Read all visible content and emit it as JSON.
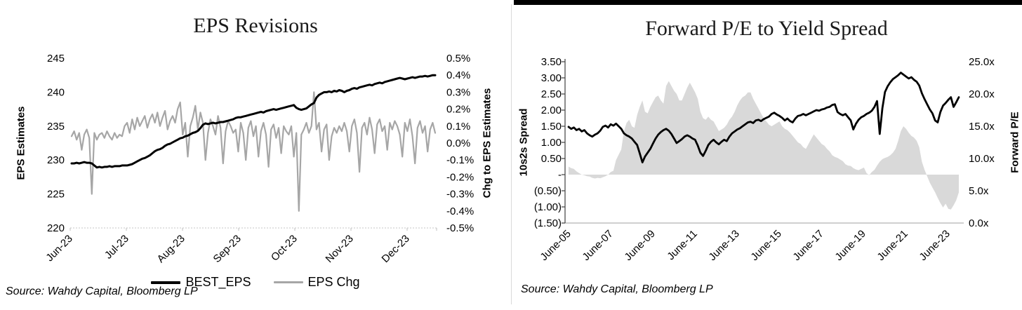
{
  "chart_data": [
    {
      "type": "line",
      "title": "EPS Revisions",
      "source": "Source: Wahdy Capital, Bloomberg LP",
      "left_axis": {
        "title": "EPS Estimates",
        "min": 220,
        "max": 245,
        "tick_labels": [
          "245",
          "240",
          "235",
          "230",
          "225",
          "220"
        ]
      },
      "right_axis": {
        "title": "Chg to EPS Estimates",
        "min": -0.5,
        "max": 0.5,
        "tick_labels": [
          "0.5%",
          "0.4%",
          "0.3%",
          "0.2%",
          "0.1%",
          "0.0%",
          "-0.1%",
          "-0.2%",
          "-0.3%",
          "-0.4%",
          "-0.5%"
        ]
      },
      "x_axis": {
        "tick_labels": [
          "Jun-23",
          "Jul-23",
          "Aug-23",
          "Sep-23",
          "Oct-23",
          "Nov-23",
          "Dec-23"
        ]
      },
      "legend_position": "bottom",
      "grid": false,
      "series": [
        {
          "name": "EPS Chg",
          "axis": "right",
          "type": "line",
          "color": "#a6a6a6",
          "width": 2.2,
          "values": [
            0.04,
            0.07,
            0.02,
            0.06,
            -0.04,
            0.05,
            0.08,
            0.03,
            -0.3,
            0.06,
            0.02,
            0.05,
            0.06,
            0.03,
            0.07,
            0.04,
            0.02,
            0.06,
            0.03,
            0.05,
            0.04,
            0.1,
            0.12,
            0.06,
            0.14,
            0.08,
            0.15,
            0.1,
            0.13,
            0.16,
            0.09,
            0.14,
            0.17,
            0.12,
            0.18,
            0.1,
            0.15,
            0.19,
            0.08,
            0.13,
            0.16,
            0.12,
            0.2,
            0.24,
            0.05,
            0.12,
            -0.08,
            0.1,
            0.15,
            0.22,
            0.08,
            0.18,
            0.12,
            -0.1,
            0.06,
            0.14,
            0.1,
            0.05,
            0.16,
            0.09,
            -0.12,
            0.07,
            0.13,
            0.1,
            0.06,
            0.08,
            -0.05,
            0.12,
            0.06,
            -0.1,
            0.09,
            0.13,
            0.04,
            0.1,
            -0.08,
            0.07,
            0.12,
            0.05,
            -0.14,
            0.08,
            0.11,
            0.03,
            0.09,
            -0.06,
            0.1,
            0.07,
            0.05,
            0.1,
            -0.08,
            0.06,
            -0.4,
            0.05,
            0.08,
            0.12,
            0.06,
            0.1,
            0.3,
            0.08,
            0.12,
            -0.05,
            0.08,
            0.11,
            -0.1,
            0.04,
            0.09,
            0.06,
            0.1,
            0.07,
            0.12,
            0.07,
            -0.05,
            0.1,
            0.14,
            0.06,
            -0.17,
            0.09,
            0.12,
            0.05,
            0.15,
            0.08,
            -0.06,
            0.11,
            0.14,
            0.07,
            0.1,
            -0.04,
            0.12,
            0.08,
            0.13,
            0.1,
            0.05,
            -0.08,
            0.12,
            0.07,
            0.14,
            0.04,
            -0.12,
            0.09,
            0.13,
            0.06,
            0.1,
            -0.05,
            0.08,
            0.12,
            0.06
          ]
        },
        {
          "name": "BEST_EPS",
          "axis": "left",
          "type": "line",
          "color": "#000000",
          "width": 3,
          "values": [
            229.5,
            229.5,
            229.6,
            229.5,
            229.6,
            229.7,
            229.6,
            229.6,
            229.5,
            229.2,
            228.9,
            229.0,
            228.9,
            229.0,
            229.0,
            229.1,
            229.0,
            229.1,
            229.1,
            229.1,
            229.2,
            229.2,
            229.2,
            229.3,
            229.4,
            229.6,
            229.8,
            230.0,
            230.2,
            230.3,
            230.5,
            230.7,
            231.0,
            231.3,
            231.5,
            231.6,
            231.8,
            232.1,
            232.3,
            232.4,
            232.6,
            232.8,
            233.0,
            233.2,
            233.3,
            233.5,
            233.6,
            233.8,
            234.0,
            234.1,
            234.3,
            234.7,
            235.2,
            235.4,
            235.3,
            235.4,
            235.5,
            235.4,
            235.5,
            235.6,
            235.6,
            235.7,
            235.8,
            235.9,
            236.0,
            236.2,
            236.3,
            236.3,
            236.4,
            236.5,
            236.6,
            236.7,
            236.8,
            236.9,
            237.0,
            237.1,
            237.0,
            237.2,
            237.3,
            237.4,
            237.5,
            237.4,
            237.5,
            237.6,
            237.7,
            237.8,
            237.9,
            238.0,
            238.1,
            237.7,
            237.5,
            237.4,
            237.5,
            237.6,
            237.9,
            238.2,
            238.4,
            239.2,
            239.6,
            239.8,
            240.0,
            240.0,
            240.1,
            240.0,
            240.2,
            240.1,
            240.3,
            240.2,
            240.0,
            240.2,
            240.3,
            240.5,
            240.6,
            240.5,
            240.7,
            240.8,
            240.9,
            241.0,
            241.1,
            241.0,
            241.2,
            241.3,
            241.4,
            241.3,
            241.5,
            241.6,
            241.7,
            241.8,
            241.9,
            242.0,
            242.1,
            242.0,
            241.9,
            242.0,
            242.1,
            242.2,
            242.1,
            242.2,
            242.3,
            242.3,
            242.4,
            242.3,
            242.4,
            242.5,
            242.5
          ]
        }
      ]
    },
    {
      "type": "line+area",
      "title": "Forward P/E to Yield Spread",
      "source": "Source: Wahdy Capital, Bloomberg LP",
      "left_axis": {
        "title": "10s2s  Spread",
        "min": -1.5,
        "max": 3.5,
        "tick_labels": [
          "3.50",
          "3.00",
          "2.50",
          "2.00",
          "1.50",
          "1.00",
          "0.50",
          "-",
          "(0.50)",
          "(1.00)",
          "(1.50)"
        ]
      },
      "right_axis": {
        "title": "Forward P/E",
        "min": 0,
        "max": 25,
        "tick_labels": [
          "25.0x",
          "20.0x",
          "15.0x",
          "10.0x",
          "5.0x",
          "0.0x"
        ]
      },
      "x_axis": {
        "tick_labels": [
          "June-05",
          "June-07",
          "June-09",
          "June-11",
          "June-13",
          "June-15",
          "June-17",
          "June-19",
          "June-21",
          "June-23"
        ]
      },
      "legend_position": "none",
      "grid": false,
      "series": [
        {
          "name": "10s2s Spread",
          "axis": "left",
          "type": "area",
          "color": "#d9d9d9",
          "baseline": 0,
          "values": [
            0.25,
            0.2,
            0.18,
            0.1,
            0.05,
            0.0,
            -0.02,
            -0.05,
            -0.06,
            -0.1,
            -0.12,
            -0.1,
            -0.11,
            -0.08,
            -0.05,
            0.0,
            0.08,
            0.12,
            0.45,
            0.62,
            0.78,
            1.35,
            1.6,
            1.7,
            1.5,
            1.45,
            1.85,
            2.1,
            2.3,
            1.95,
            1.9,
            2.1,
            2.25,
            2.4,
            2.45,
            2.3,
            2.2,
            2.75,
            2.9,
            2.75,
            2.6,
            2.5,
            2.3,
            2.3,
            2.5,
            2.7,
            2.85,
            2.7,
            2.55,
            2.35,
            1.95,
            1.75,
            1.7,
            1.8,
            1.7,
            1.65,
            1.5,
            1.35,
            1.4,
            1.45,
            1.55,
            1.7,
            1.8,
            1.95,
            2.15,
            2.3,
            2.4,
            2.45,
            2.55,
            2.55,
            2.35,
            2.2,
            2.05,
            1.9,
            1.75,
            1.65,
            1.55,
            1.5,
            1.55,
            1.6,
            1.65,
            1.5,
            1.42,
            1.38,
            1.3,
            1.2,
            1.1,
            1.0,
            0.95,
            0.85,
            0.8,
            0.95,
            1.1,
            1.25,
            1.15,
            1.05,
            0.95,
            0.9,
            0.8,
            0.72,
            0.6,
            0.55,
            0.52,
            0.47,
            0.42,
            0.32,
            0.28,
            0.27,
            0.2,
            0.16,
            0.14,
            0.18,
            0.22,
            0.05,
            -0.02,
            0.08,
            0.15,
            0.28,
            0.4,
            0.48,
            0.52,
            0.55,
            0.6,
            0.68,
            0.8,
            1.05,
            1.35,
            1.5,
            1.42,
            1.3,
            1.2,
            1.15,
            1.05,
            0.85,
            0.4,
            0.15,
            -0.05,
            -0.25,
            -0.4,
            -0.55,
            -0.72,
            -0.88,
            -1.02,
            -0.9,
            -1.06,
            -1.08,
            -0.95,
            -0.8,
            -0.55
          ]
        },
        {
          "name": "Forward P/E",
          "axis": "right",
          "type": "line",
          "color": "#000000",
          "width": 2.8,
          "values": [
            14.9,
            14.6,
            14.8,
            14.4,
            14.6,
            14.2,
            14.4,
            13.9,
            13.6,
            13.4,
            13.7,
            13.9,
            14.3,
            14.9,
            15.1,
            14.8,
            15.3,
            15.1,
            15.4,
            15.0,
            14.6,
            13.9,
            13.6,
            13.4,
            13.1,
            12.6,
            12.1,
            10.8,
            9.4,
            10.3,
            10.9,
            11.5,
            12.3,
            13.1,
            13.7,
            14.1,
            14.4,
            14.6,
            14.3,
            13.8,
            13.1,
            12.4,
            12.7,
            13.0,
            13.4,
            13.6,
            13.4,
            13.1,
            12.9,
            12.0,
            10.9,
            10.4,
            11.2,
            12.1,
            12.6,
            12.9,
            12.5,
            12.2,
            12.6,
            12.9,
            12.7,
            13.4,
            13.9,
            14.2,
            14.5,
            14.7,
            15.0,
            15.3,
            15.6,
            15.7,
            15.5,
            15.9,
            16.0,
            15.8,
            16.1,
            16.3,
            16.5,
            16.9,
            17.1,
            16.8,
            16.6,
            16.3,
            15.9,
            16.2,
            15.8,
            15.6,
            16.2,
            16.6,
            16.7,
            16.9,
            16.7,
            16.9,
            17.1,
            17.3,
            17.5,
            17.4,
            17.6,
            17.7,
            17.9,
            18.0,
            18.3,
            18.4,
            17.2,
            16.9,
            16.7,
            16.9,
            16.4,
            15.9,
            14.5,
            15.4,
            16.0,
            16.4,
            16.6,
            16.9,
            17.1,
            17.4,
            18.0,
            18.9,
            13.8,
            17.8,
            20.3,
            21.2,
            21.8,
            22.3,
            22.6,
            22.9,
            23.3,
            23.0,
            22.7,
            22.4,
            22.6,
            22.2,
            21.9,
            21.3,
            20.1,
            19.2,
            18.4,
            17.6,
            17.0,
            15.9,
            15.6,
            17.2,
            18.2,
            18.6,
            19.1,
            19.5,
            18.0,
            18.7,
            19.5
          ]
        }
      ]
    }
  ]
}
